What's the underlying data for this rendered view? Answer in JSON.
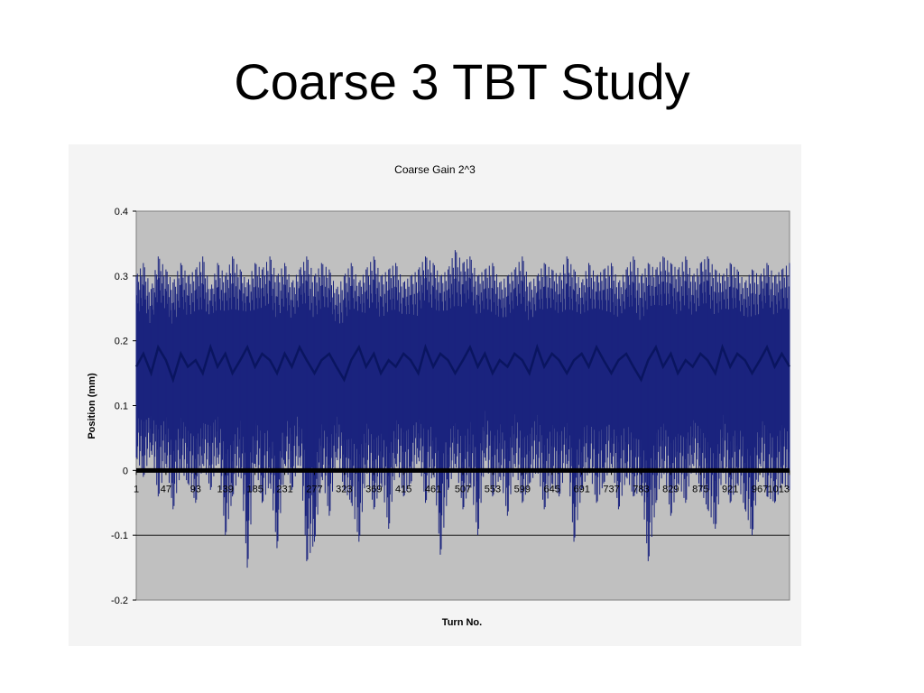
{
  "slide": {
    "title": "Coarse 3 TBT Study"
  },
  "chart_data": {
    "type": "line",
    "title": "Coarse Gain 2^3",
    "xlabel": "Turn No.",
    "ylabel": "Position (mm)",
    "ylim": [
      -0.2,
      0.4
    ],
    "y_ticks": [
      "0.4",
      "0.3",
      "0.2",
      "0.1",
      "0",
      "-0.1",
      "-0.2"
    ],
    "x_tick_labels": [
      "1",
      "47",
      "93",
      "139",
      "185",
      "231",
      "277",
      "323",
      "369",
      "415",
      "461",
      "507",
      "553",
      "599",
      "645",
      "691",
      "737",
      "783",
      "829",
      "875",
      "921",
      "967",
      "1013"
    ],
    "x_range": [
      1,
      1013
    ],
    "grid": "horizontal",
    "legend": "none",
    "colors": {
      "series": "#1a237e",
      "plot_bg": "#c0c0c0",
      "frame_bg": "#f4f4f4",
      "baseline": "#000000"
    },
    "series": [
      {
        "x": [
          1,
          12,
          24,
          35,
          47,
          58,
          70,
          81,
          93,
          104,
          116,
          127,
          139,
          150,
          162,
          173,
          185,
          196,
          208,
          219,
          231,
          242,
          254,
          265,
          277,
          288,
          300,
          311,
          323,
          334,
          346,
          357,
          369,
          380,
          392,
          403,
          415,
          426,
          438,
          449,
          461,
          472,
          484,
          495,
          507,
          518,
          530,
          541,
          553,
          564,
          576,
          587,
          599,
          610,
          622,
          633,
          645,
          656,
          668,
          679,
          691,
          702,
          714,
          725,
          737,
          748,
          760,
          771,
          783,
          794,
          806,
          817,
          829,
          840,
          852,
          863,
          875,
          886,
          898,
          909,
          921,
          932,
          944,
          955,
          967,
          978,
          990,
          1001,
          1013
        ],
        "values": [
          0.16,
          0.18,
          0.15,
          0.19,
          0.17,
          0.14,
          0.18,
          0.16,
          0.17,
          0.15,
          0.19,
          0.16,
          0.18,
          0.15,
          0.17,
          0.19,
          0.16,
          0.18,
          0.17,
          0.15,
          0.18,
          0.16,
          0.19,
          0.17,
          0.15,
          0.17,
          0.18,
          0.16,
          0.14,
          0.17,
          0.19,
          0.16,
          0.18,
          0.15,
          0.17,
          0.16,
          0.18,
          0.17,
          0.15,
          0.19,
          0.16,
          0.18,
          0.17,
          0.15,
          0.17,
          0.19,
          0.16,
          0.18,
          0.15,
          0.17,
          0.16,
          0.18,
          0.17,
          0.15,
          0.19,
          0.16,
          0.18,
          0.17,
          0.15,
          0.17,
          0.18,
          0.16,
          0.19,
          0.17,
          0.15,
          0.17,
          0.18,
          0.16,
          0.14,
          0.17,
          0.19,
          0.16,
          0.18,
          0.15,
          0.17,
          0.16,
          0.18,
          0.17,
          0.15,
          0.19,
          0.16,
          0.18,
          0.17,
          0.15,
          0.17,
          0.19,
          0.16,
          0.18,
          0.16
        ],
        "min": [
          0.02,
          -0.01,
          0.03,
          -0.04,
          0.01,
          -0.06,
          0.0,
          -0.02,
          -0.05,
          0.01,
          -0.03,
          0.02,
          -0.1,
          -0.04,
          0.0,
          -0.15,
          0.01,
          -0.05,
          -0.02,
          -0.12,
          0.01,
          -0.03,
          0.02,
          -0.14,
          -0.11,
          -0.01,
          -0.07,
          0.02,
          -0.03,
          -0.05,
          -0.11,
          0.0,
          -0.06,
          -0.02,
          -0.09,
          0.01,
          -0.04,
          -0.02,
          0.02,
          -0.05,
          0.0,
          -0.13,
          -0.03,
          0.01,
          -0.06,
          -0.02,
          -0.1,
          0.02,
          -0.04,
          -0.01,
          -0.07,
          0.01,
          -0.05,
          -0.02,
          0.0,
          -0.06,
          -0.02,
          -0.04,
          0.01,
          -0.11,
          -0.03,
          0.0,
          -0.05,
          -0.02,
          0.01,
          -0.06,
          -0.01,
          -0.04,
          -0.03,
          -0.14,
          -0.05,
          0.0,
          -0.07,
          -0.02,
          -0.05,
          0.01,
          -0.03,
          -0.06,
          -0.09,
          0.0,
          -0.05,
          -0.02,
          -0.06,
          -0.1,
          0.01,
          -0.04,
          -0.05,
          -0.02,
          -0.03
        ],
        "max": [
          0.3,
          0.32,
          0.28,
          0.33,
          0.31,
          0.29,
          0.32,
          0.3,
          0.31,
          0.33,
          0.28,
          0.32,
          0.3,
          0.33,
          0.31,
          0.29,
          0.32,
          0.31,
          0.33,
          0.3,
          0.32,
          0.29,
          0.31,
          0.33,
          0.3,
          0.32,
          0.31,
          0.28,
          0.3,
          0.32,
          0.29,
          0.31,
          0.33,
          0.3,
          0.31,
          0.32,
          0.29,
          0.3,
          0.31,
          0.33,
          0.32,
          0.3,
          0.31,
          0.34,
          0.32,
          0.33,
          0.3,
          0.31,
          0.32,
          0.29,
          0.3,
          0.31,
          0.33,
          0.29,
          0.3,
          0.32,
          0.31,
          0.3,
          0.33,
          0.31,
          0.29,
          0.32,
          0.3,
          0.31,
          0.32,
          0.29,
          0.31,
          0.33,
          0.3,
          0.32,
          0.31,
          0.33,
          0.32,
          0.31,
          0.33,
          0.3,
          0.32,
          0.33,
          0.31,
          0.3,
          0.32,
          0.31,
          0.29,
          0.31,
          0.3,
          0.32,
          0.3,
          0.31,
          0.32
        ]
      }
    ]
  }
}
